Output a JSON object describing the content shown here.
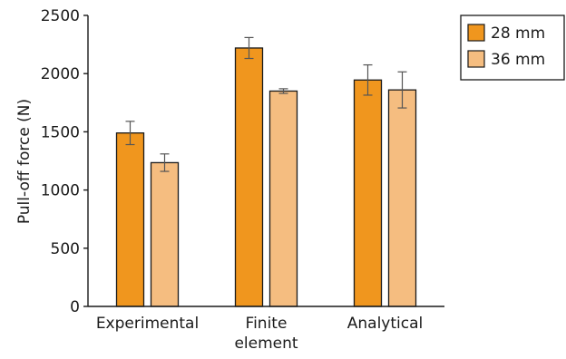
{
  "chart_data": {
    "type": "bar",
    "categories": [
      [
        "Experimental"
      ],
      [
        "Finite",
        "element"
      ],
      [
        "Analytical"
      ]
    ],
    "series": [
      {
        "name": "28 mm",
        "color": "#f0961e",
        "values": [
          1490,
          2220,
          1945
        ],
        "error": [
          100,
          90,
          130
        ]
      },
      {
        "name": "36 mm",
        "color": "#f5bd80",
        "values": [
          1235,
          1850,
          1860
        ],
        "error": [
          75,
          20,
          155
        ]
      }
    ],
    "xlabel": "",
    "ylabel": "Pull-off force (N)",
    "ylim": [
      0,
      2500
    ],
    "yticks": [
      0,
      500,
      1000,
      1500,
      2000,
      2500
    ],
    "ytick_labels": [
      "0",
      "500",
      "1000",
      "1500",
      "2000",
      "2500"
    ],
    "grid": false,
    "legend_position": "top-right"
  }
}
